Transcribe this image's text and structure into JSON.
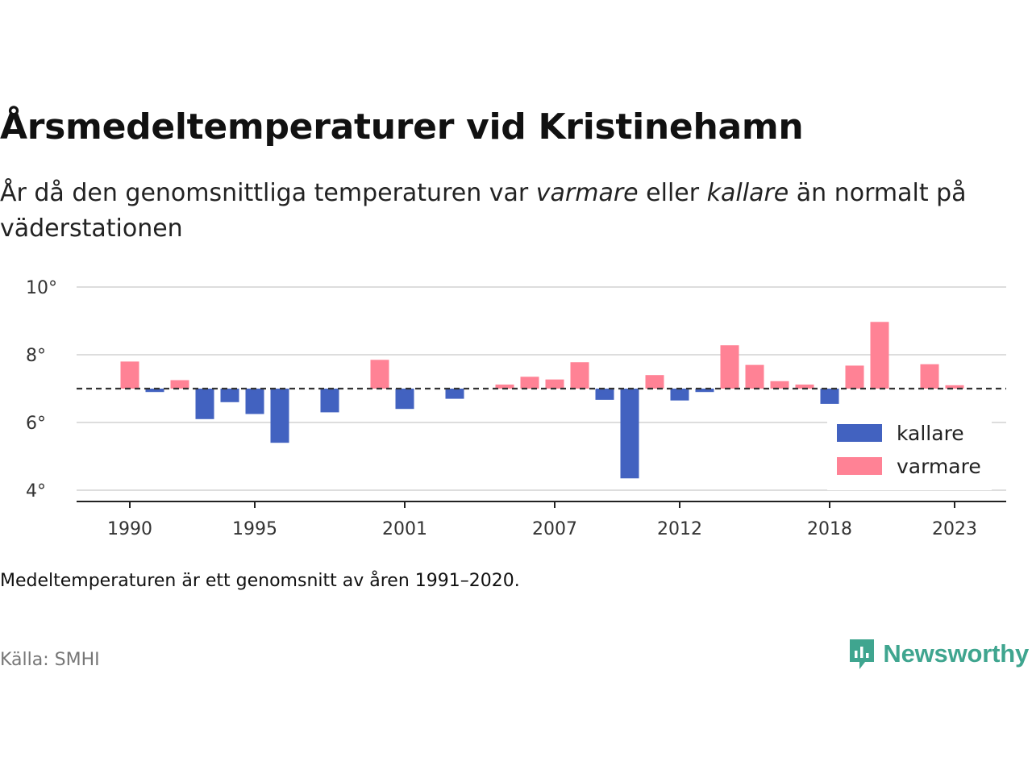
{
  "title": "Årsmedeltemperaturer vid Kristinehamn",
  "subtitle": {
    "before": "År då den genomsnittliga temperaturen var ",
    "warm_word": "varmare",
    "middle": " eller ",
    "cold_word": "kallare",
    "after": " än normalt på väderstationen"
  },
  "note": "Medeltemperaturen är ett genomsnitt av åren 1991–2020.",
  "source": "Källa: SMHI",
  "brand": "Newsworthy",
  "colors": {
    "cold": "#4262c0",
    "warm": "#ff8295",
    "baseline": "#333333",
    "grid": "#dddddd",
    "brand": "#3fa58f"
  },
  "chart_data": {
    "type": "bar",
    "baseline": 7.0,
    "ylim": [
      3.7,
      10.2
    ],
    "yticks": [
      4,
      6,
      8,
      10
    ],
    "ytick_suffix": "°",
    "xlim": [
      1989,
      1989.7
    ],
    "xticks": [
      1990,
      1995,
      2001,
      2007,
      2012,
      2018,
      2023
    ],
    "grid": true,
    "legend_position": "right",
    "series": [
      {
        "name": "kallare",
        "color": "#4262c0"
      },
      {
        "name": "varmare",
        "color": "#ff8295"
      }
    ],
    "years": [
      1990,
      1991,
      1992,
      1993,
      1994,
      1995,
      1996,
      1997,
      1998,
      1999,
      2000,
      2001,
      2002,
      2003,
      2004,
      2005,
      2006,
      2007,
      2008,
      2009,
      2010,
      2011,
      2012,
      2013,
      2014,
      2015,
      2016,
      2017,
      2018,
      2019,
      2020,
      2021,
      2022,
      2023
    ],
    "values": [
      7.8,
      6.9,
      7.25,
      6.1,
      6.6,
      6.25,
      5.4,
      null,
      6.3,
      null,
      7.85,
      6.4,
      null,
      6.7,
      null,
      7.12,
      7.35,
      7.27,
      7.78,
      6.67,
      4.35,
      7.4,
      6.65,
      6.9,
      8.28,
      7.7,
      7.22,
      7.12,
      6.55,
      7.68,
      8.97,
      null,
      7.72,
      7.1
    ]
  }
}
